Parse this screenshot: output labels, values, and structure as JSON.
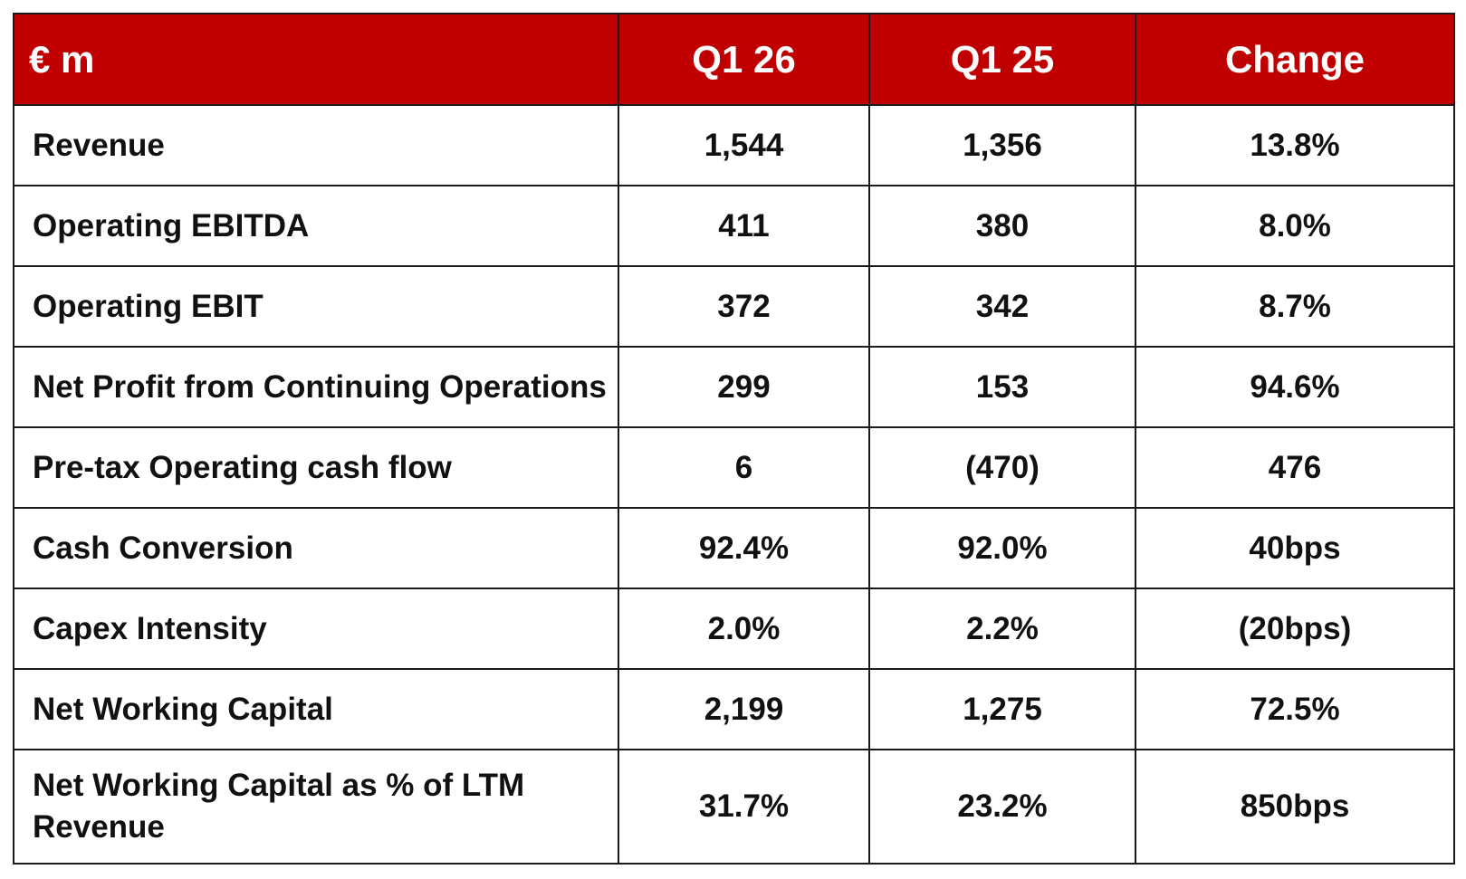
{
  "table": {
    "headers": [
      "€ m",
      "Q1 26",
      "Q1 25",
      "Change"
    ],
    "rows": [
      {
        "label": "Revenue",
        "q1_26": "1,544",
        "q1_25": "1,356",
        "change": "13.8%"
      },
      {
        "label": "Operating EBITDA",
        "q1_26": "411",
        "q1_25": "380",
        "change": "8.0%"
      },
      {
        "label": "Operating EBIT",
        "q1_26": "372",
        "q1_25": "342",
        "change": "8.7%"
      },
      {
        "label": "Net Profit from Continuing Operations",
        "q1_26": "299",
        "q1_25": "153",
        "change": "94.6%"
      },
      {
        "label": "Pre-tax Operating cash flow",
        "q1_26": "6",
        "q1_25": "(470)",
        "change": "476"
      },
      {
        "label": "Cash Conversion",
        "q1_26": "92.4%",
        "q1_25": "92.0%",
        "change": "40bps"
      },
      {
        "label": "Capex Intensity",
        "q1_26": "2.0%",
        "q1_25": "2.2%",
        "change": "(20bps)"
      },
      {
        "label": "Net Working Capital",
        "q1_26": "2,199",
        "q1_25": "1,275",
        "change": "72.5%"
      },
      {
        "label": "Net Working Capital as % of LTM Revenue",
        "q1_26": "31.7%",
        "q1_25": "23.2%",
        "change": "850bps"
      }
    ]
  },
  "colors": {
    "header_bg": "#c00000",
    "header_text": "#ffffff",
    "border": "#1a1a1a",
    "body_text": "#111111"
  }
}
